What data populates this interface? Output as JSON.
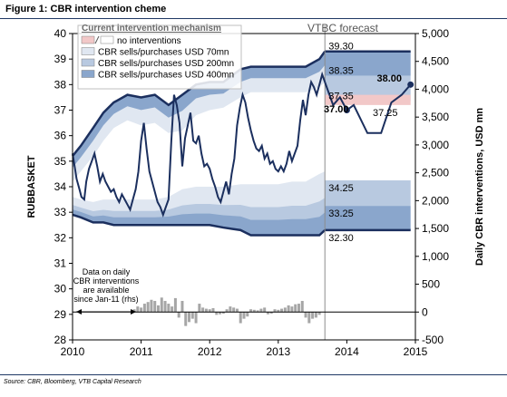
{
  "figure_title": "Figure 1: CBR intervention cheme",
  "source_note": "Source: CBR, Bloomberg, VTB Capital Research",
  "colors": {
    "band_none": "#f2c8c8",
    "band_70": "#e0e7f1",
    "band_200": "#b8c9e0",
    "band_400": "#8aa6cc",
    "line": "#1b2f5e",
    "bars": "#a6a6a6",
    "rule": "#1f3864"
  },
  "chart_data": {
    "type": "area",
    "title": "Figure 1: CBR intervention cheme",
    "ylabel": "RUBBASKET",
    "ylabel_right": "Daily CBR interventions, USD mn",
    "xlim": [
      2010,
      2015
    ],
    "ylim": [
      28,
      40
    ],
    "ylim_right": [
      -500,
      5000
    ],
    "x_ticks": [
      "2010",
      "2011",
      "2012",
      "2013",
      "2014",
      "2015"
    ],
    "y_ticks": [
      "28",
      "29",
      "30",
      "31",
      "32",
      "33",
      "34",
      "35",
      "36",
      "37",
      "38",
      "39",
      "40"
    ],
    "y_ticks_right": [
      "-500",
      "0",
      "500",
      "1,000",
      "1,500",
      "2,000",
      "2,500",
      "3,000",
      "3,500",
      "4,000",
      "4,500",
      "5,000"
    ],
    "grid": false,
    "legend": {
      "title": "Current intervention mechanism",
      "position": "top-left",
      "items": [
        {
          "label": "no interventions",
          "color_key": "band_none"
        },
        {
          "label": "CBR sells/purchases USD 70mn",
          "color_key": "band_70"
        },
        {
          "label": "CBR sells/purchases USD 200mn",
          "color_key": "band_200"
        },
        {
          "label": "CBR sells/purchases USD 400mn",
          "color_key": "band_400"
        }
      ]
    },
    "bands": {
      "x": [
        2010.0,
        2010.12,
        2010.3,
        2010.45,
        2010.6,
        2010.8,
        2011.0,
        2011.2,
        2011.4,
        2011.6,
        2011.8,
        2012.0,
        2012.2,
        2012.45,
        2012.6,
        2012.8,
        2013.0,
        2013.2,
        2013.4,
        2013.6,
        2013.68
      ],
      "top": [
        35.2,
        35.6,
        36.3,
        36.9,
        37.3,
        37.6,
        37.5,
        37.6,
        37.2,
        37.6,
        38.0,
        38.1,
        38.1,
        38.6,
        38.7,
        38.7,
        38.7,
        38.7,
        38.7,
        39.0,
        39.3
      ],
      "bottom": [
        32.9,
        32.8,
        32.6,
        32.6,
        32.5,
        32.5,
        32.5,
        32.5,
        32.5,
        32.5,
        32.5,
        32.5,
        32.4,
        32.3,
        32.1,
        32.1,
        32.1,
        32.1,
        32.1,
        32.1,
        32.3
      ],
      "lower_400": [
        33.6,
        33.5,
        33.4,
        33.5,
        33.5,
        33.5,
        33.5,
        33.5,
        33.6,
        33.9,
        34.0,
        34.0,
        34.0,
        34.1,
        34.1,
        34.1,
        34.1,
        34.2,
        34.2,
        34.5,
        34.6
      ],
      "upper_400": [
        34.2,
        34.6,
        35.2,
        35.8,
        36.3,
        36.6,
        36.4,
        36.5,
        36.1,
        36.2,
        36.8,
        37.0,
        37.1,
        37.5,
        37.7,
        37.7,
        37.7,
        37.7,
        37.7,
        37.9,
        38.1
      ],
      "forecast_levels": [
        {
          "label": "39.30",
          "y": 39.3
        },
        {
          "label": "38.35",
          "y": 38.35
        },
        {
          "label": "37.35",
          "y": 37.35
        },
        {
          "label": "34.25",
          "y": 34.25
        },
        {
          "label": "33.25",
          "y": 33.25
        },
        {
          "label": "32.30",
          "y": 32.3
        }
      ],
      "forecast_no_intervention": [
        37.2,
        37.6
      ]
    },
    "series": [
      {
        "name": "RUBBASKET",
        "x": [
          2010.0,
          2010.03,
          2010.06,
          2010.1,
          2010.13,
          2010.17,
          2010.2,
          2010.24,
          2010.28,
          2010.32,
          2010.36,
          2010.4,
          2010.44,
          2010.48,
          2010.52,
          2010.56,
          2010.6,
          2010.64,
          2010.68,
          2010.72,
          2010.76,
          2010.8,
          2010.84,
          2010.88,
          2010.92,
          2010.96,
          2011.0,
          2011.04,
          2011.08,
          2011.12,
          2011.16,
          2011.2,
          2011.24,
          2011.28,
          2011.32,
          2011.36,
          2011.4,
          2011.44,
          2011.48,
          2011.52,
          2011.56,
          2011.6,
          2011.64,
          2011.68,
          2011.72,
          2011.76,
          2011.8,
          2011.84,
          2011.88,
          2011.92,
          2011.96,
          2012.0,
          2012.04,
          2012.08,
          2012.12,
          2012.16,
          2012.2,
          2012.24,
          2012.28,
          2012.32,
          2012.36,
          2012.4,
          2012.44,
          2012.48,
          2012.52,
          2012.56,
          2012.6,
          2012.64,
          2012.68,
          2012.72,
          2012.76,
          2012.8,
          2012.84,
          2012.88,
          2012.92,
          2012.96,
          2013.0,
          2013.04,
          2013.08,
          2013.12,
          2013.16,
          2013.2,
          2013.24,
          2013.28,
          2013.32,
          2013.36,
          2013.4,
          2013.44,
          2013.48,
          2013.52,
          2013.56,
          2013.6,
          2013.64,
          2013.68
        ],
        "values": [
          35.3,
          34.8,
          34.3,
          33.9,
          33.6,
          33.5,
          34.2,
          34.7,
          35.0,
          35.3,
          34.8,
          34.2,
          34.5,
          34.2,
          34.0,
          33.8,
          33.9,
          33.6,
          33.4,
          33.7,
          33.5,
          33.3,
          33.1,
          33.5,
          33.9,
          34.6,
          35.8,
          36.5,
          35.5,
          34.6,
          34.2,
          33.8,
          33.4,
          33.2,
          32.9,
          33.2,
          33.5,
          35.8,
          37.6,
          37.2,
          36.5,
          34.8,
          35.9,
          36.4,
          36.9,
          35.8,
          35.7,
          36.0,
          35.3,
          34.8,
          34.9,
          34.7,
          34.3,
          34.0,
          33.6,
          33.4,
          33.8,
          34.2,
          33.7,
          34.5,
          35.1,
          36.4,
          37.1,
          37.6,
          37.3,
          36.7,
          36.2,
          35.8,
          35.5,
          35.4,
          35.6,
          35.1,
          35.3,
          34.9,
          35.0,
          34.7,
          34.6,
          34.8,
          34.6,
          34.9,
          35.4,
          35.0,
          35.3,
          35.6,
          36.6,
          37.4,
          36.8,
          37.6,
          38.1,
          37.9,
          37.6,
          38.0,
          38.4,
          38.1
        ]
      },
      {
        "name": "VTBC forecast",
        "x": [
          2013.68,
          2013.8,
          2013.9,
          2014.0,
          2014.1,
          2014.3,
          2014.5,
          2014.65,
          2014.8,
          2014.93
        ],
        "values": [
          38.1,
          37.2,
          37.5,
          37.0,
          37.2,
          36.1,
          36.1,
          37.3,
          37.6,
          38.0
        ]
      }
    ],
    "interventions": {
      "name": "Daily CBR interventions",
      "x": [
        2010.9,
        2010.95,
        2011.0,
        2011.05,
        2011.1,
        2011.15,
        2011.2,
        2011.25,
        2011.3,
        2011.35,
        2011.4,
        2011.45,
        2011.5,
        2011.55,
        2011.6,
        2011.65,
        2011.7,
        2011.75,
        2011.8,
        2011.85,
        2011.9,
        2011.95,
        2012.0,
        2012.05,
        2012.1,
        2012.15,
        2012.2,
        2012.25,
        2012.3,
        2012.35,
        2012.4,
        2012.45,
        2012.5,
        2012.55,
        2012.6,
        2012.65,
        2012.7,
        2012.75,
        2012.8,
        2012.85,
        2012.9,
        2012.95,
        2013.0,
        2013.05,
        2013.1,
        2013.15,
        2013.2,
        2013.25,
        2013.3,
        2013.35,
        2013.4,
        2013.45,
        2013.5,
        2013.55,
        2013.6
      ],
      "values": [
        50,
        100,
        80,
        150,
        180,
        220,
        200,
        120,
        260,
        200,
        150,
        100,
        250,
        -100,
        200,
        -250,
        -180,
        -120,
        -200,
        150,
        80,
        60,
        50,
        70,
        -50,
        -40,
        -30,
        50,
        100,
        80,
        60,
        -200,
        -120,
        -80,
        50,
        40,
        30,
        60,
        80,
        -40,
        -30,
        50,
        40,
        60,
        80,
        120,
        100,
        140,
        150,
        200,
        -100,
        -200,
        -120,
        -100,
        -50
      ]
    },
    "annotations": [
      {
        "text": "VTBC forecast"
      },
      {
        "text": "37.00"
      },
      {
        "text": "37.25"
      },
      {
        "text": "38.00"
      }
    ],
    "data_note": [
      "Data on daily",
      "CBR interventions",
      "are available",
      "since Jan-11 (rhs)"
    ]
  }
}
